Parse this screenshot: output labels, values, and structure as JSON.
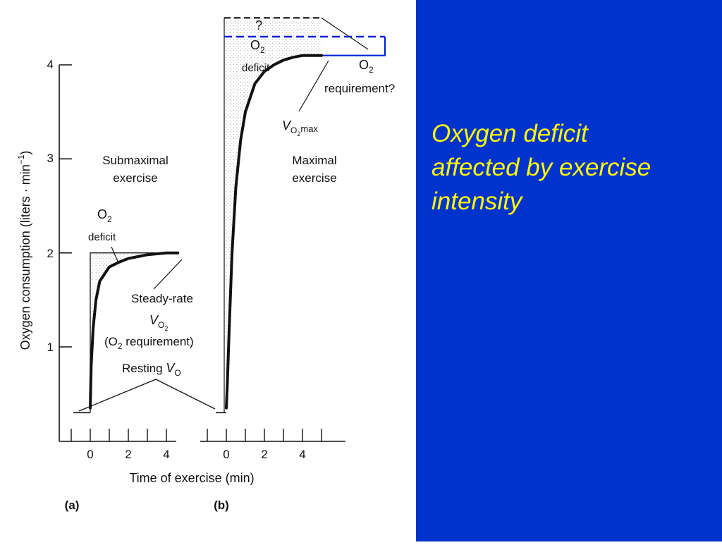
{
  "theme": {
    "panel_bg": "#0033cc",
    "caption_color": "#ffff00",
    "dash_blue": "#0022dd",
    "ink": "#111111"
  },
  "side_caption": {
    "line1": "Oxygen deficit",
    "line2": "affected by exercise",
    "line3": "intensity"
  },
  "chart_data": {
    "type": "line",
    "ylabel_main": "Oxygen consumption (liters · min",
    "ylabel_sup": "−1",
    "ylabel_close": ")",
    "xlabel": "Time of exercise (min)",
    "y_ticks": [
      "1",
      "2",
      "3",
      "4"
    ],
    "ylim": [
      0.3,
      4.7
    ],
    "grid": false,
    "panels": [
      {
        "id": "a",
        "label": "(a)",
        "x_ticks": [
          "0",
          "2",
          "4"
        ],
        "title_line1": "Submaximal",
        "title_line2": "exercise",
        "deficit_label": {
          "o": "O",
          "sub": "2",
          "word": "deficit"
        },
        "steady_label": {
          "line1": "Steady-rate",
          "v": "V",
          "v_sub": "O",
          "v_sub2": "2",
          "line3_open": "(O",
          "line3_sub": "2",
          "line3_rest": " requirement)"
        },
        "resting_label": {
          "word": "Resting ",
          "v": "V",
          "v_sub": "O"
        },
        "resting_vo2": 0.3,
        "steady_vo2": 2.0,
        "uptake_curve": {
          "x": [
            0.0,
            0.05,
            0.15,
            0.3,
            0.5,
            1.0,
            1.5,
            2.0,
            2.5,
            3.0,
            3.5,
            4.0,
            4.6
          ],
          "y": [
            0.35,
            0.8,
            1.2,
            1.5,
            1.7,
            1.85,
            1.9,
            1.94,
            1.96,
            1.98,
            1.99,
            2.0,
            2.0
          ]
        }
      },
      {
        "id": "b",
        "label": "(b)",
        "x_ticks": [
          "0",
          "2",
          "4"
        ],
        "title_line1": "Maximal",
        "title_line2": "exercise",
        "deficit_label": {
          "o": "O",
          "sub": "2",
          "word": "deficit",
          "question": "?"
        },
        "requirement_label": {
          "o": "O",
          "sub": "2",
          "word": "requirement?"
        },
        "vo2max_label": {
          "v": "V",
          "sub": "O",
          "sub2": "2",
          "suffix": "max"
        },
        "resting_vo2": 0.3,
        "vo2max": 4.1,
        "requirement_level": 4.3,
        "upper_requirement_level": 4.5,
        "uptake_curve": {
          "x": [
            0.0,
            0.05,
            0.15,
            0.3,
            0.5,
            0.75,
            1.0,
            1.5,
            2.0,
            2.5,
            3.0,
            3.5,
            4.0,
            4.6,
            5.0
          ],
          "y": [
            0.35,
            0.6,
            1.2,
            2.0,
            2.7,
            3.2,
            3.5,
            3.8,
            3.93,
            4.0,
            4.05,
            4.08,
            4.1,
            4.1,
            4.1
          ]
        }
      }
    ]
  }
}
